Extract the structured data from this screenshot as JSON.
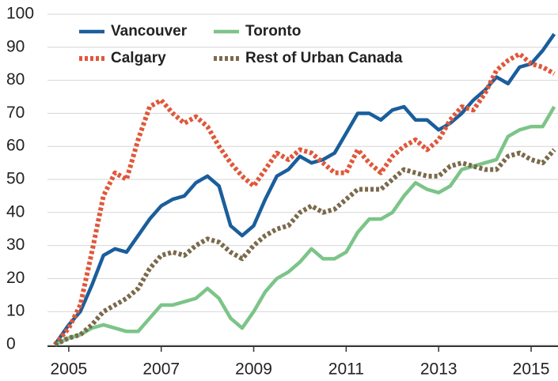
{
  "chart_data": {
    "type": "line",
    "x": [
      2004.7,
      2005,
      2005.25,
      2005.5,
      2005.75,
      2006,
      2006.25,
      2006.5,
      2006.75,
      2007,
      2007.25,
      2007.5,
      2007.75,
      2008,
      2008.25,
      2008.5,
      2008.75,
      2009,
      2009.25,
      2009.5,
      2009.75,
      2010,
      2010.25,
      2010.5,
      2010.75,
      2011,
      2011.25,
      2011.5,
      2011.75,
      2012,
      2012.25,
      2012.5,
      2012.75,
      2013,
      2013.25,
      2013.5,
      2013.75,
      2014,
      2014.25,
      2014.5,
      2014.75,
      2015,
      2015.25,
      2015.5
    ],
    "series": [
      {
        "name": "Vancouver",
        "color": "#1a5e9c",
        "style": "solid",
        "values": [
          0,
          6,
          10,
          18,
          27,
          29,
          28,
          33,
          38,
          42,
          44,
          45,
          49,
          51,
          48,
          36,
          33,
          36,
          44,
          51,
          53,
          57,
          55,
          56,
          58,
          64,
          70,
          70,
          68,
          71,
          72,
          68,
          68,
          65,
          67,
          70,
          74,
          77,
          81,
          79,
          84,
          85,
          89,
          94
        ]
      },
      {
        "name": "Toronto",
        "color": "#7cc488",
        "style": "solid",
        "values": [
          0,
          2,
          3,
          5,
          6,
          5,
          4,
          4,
          8,
          12,
          12,
          13,
          14,
          17,
          14,
          8,
          5,
          10,
          16,
          20,
          22,
          25,
          29,
          26,
          26,
          28,
          34,
          38,
          38,
          40,
          45,
          49,
          47,
          46,
          48,
          53,
          54,
          55,
          56,
          63,
          65,
          66,
          66,
          72
        ]
      },
      {
        "name": "Calgary",
        "color": "#e0573a",
        "style": "dotted",
        "values": [
          0,
          5,
          12,
          28,
          45,
          52,
          50,
          62,
          72,
          74,
          70,
          67,
          69,
          66,
          60,
          55,
          51,
          48,
          53,
          58,
          56,
          59,
          58,
          55,
          52,
          52,
          59,
          55,
          52,
          57,
          60,
          62,
          59,
          62,
          68,
          72,
          71,
          76,
          83,
          86,
          88,
          85,
          84,
          82
        ]
      },
      {
        "name": "Rest of Urban Canada",
        "color": "#7a6a4c",
        "style": "dotted",
        "values": [
          0,
          2,
          3,
          6,
          10,
          12,
          14,
          17,
          23,
          27,
          28,
          27,
          30,
          32,
          31,
          28,
          26,
          30,
          33,
          35,
          36,
          40,
          42,
          40,
          41,
          44,
          47,
          47,
          47,
          50,
          53,
          52,
          51,
          51,
          54,
          55,
          54,
          53,
          53,
          57,
          58,
          56,
          55,
          59
        ]
      }
    ],
    "xlim": [
      2004.54,
      2015.53
    ],
    "xticks": [
      2005,
      2007,
      2009,
      2011,
      2013,
      2015
    ],
    "ylim": [
      0,
      100
    ],
    "yticks": [
      0,
      10,
      20,
      30,
      40,
      50,
      60,
      70,
      80,
      90,
      100
    ],
    "grid": true,
    "legend": "upper-left"
  }
}
